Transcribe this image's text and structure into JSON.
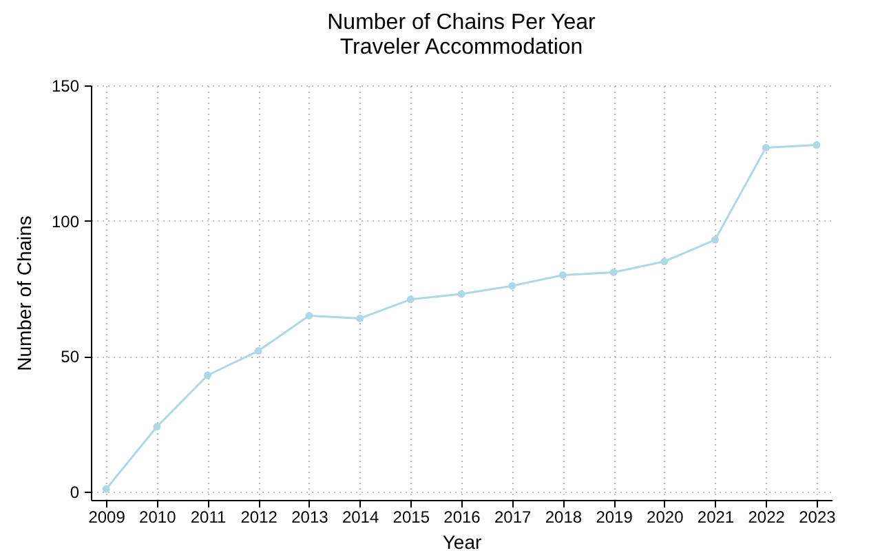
{
  "chart_data": {
    "type": "line",
    "title": "Number of Chains Per Year",
    "subtitle": "Traveler Accommodation",
    "xlabel": "Year",
    "ylabel": "Number of Chains",
    "categories": [
      "2009",
      "2010",
      "2011",
      "2012",
      "2013",
      "2014",
      "2015",
      "2016",
      "2017",
      "2018",
      "2019",
      "2020",
      "2021",
      "2022",
      "2023"
    ],
    "series": [
      {
        "color": "#add8e6",
        "values": [
          1,
          24,
          43,
          52,
          65,
          64,
          71,
          73,
          76,
          80,
          81,
          85,
          93,
          127,
          128
        ]
      }
    ],
    "ylim": [
      -3,
      150
    ],
    "yticks": [
      0,
      50,
      100,
      150
    ],
    "grid": true,
    "marker": "circle",
    "line_style": "solid"
  }
}
